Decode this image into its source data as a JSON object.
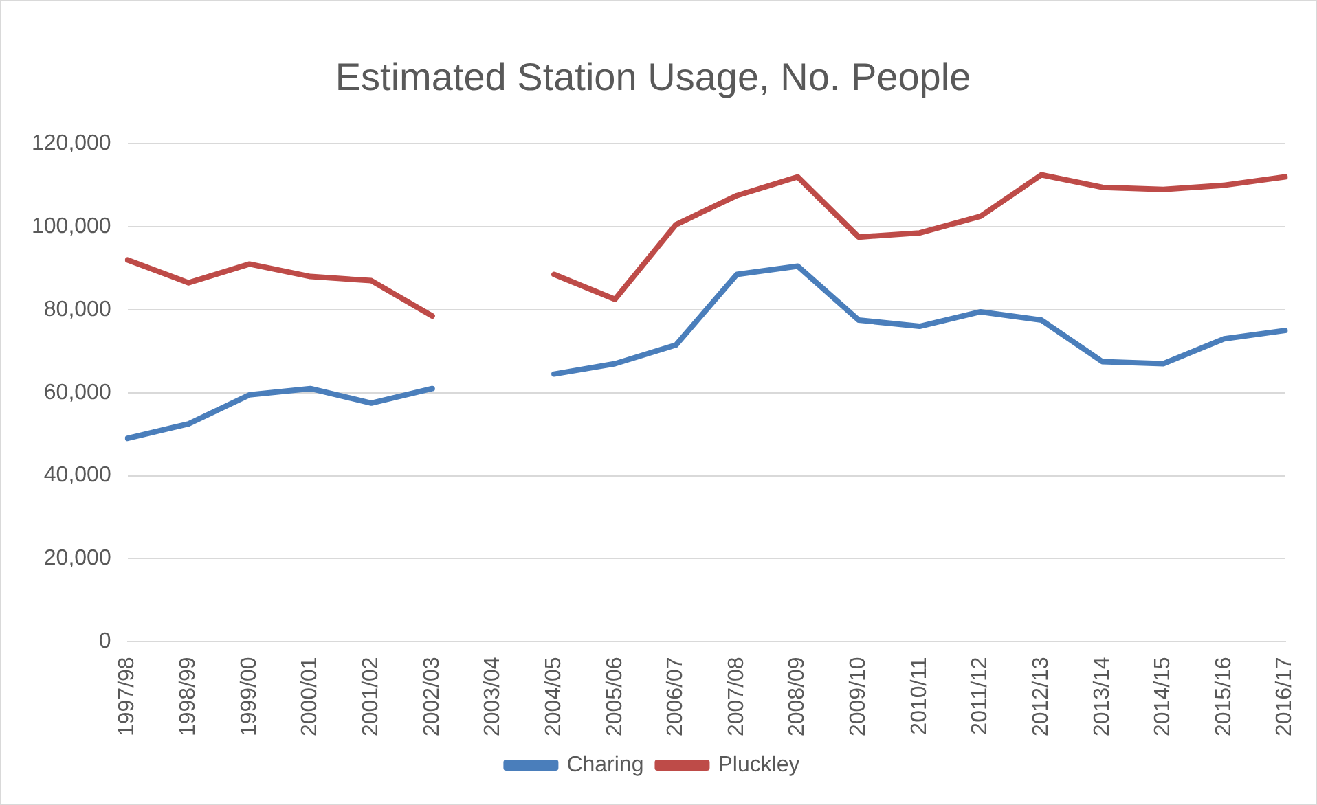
{
  "chart_data": {
    "type": "line",
    "title": "Estimated Station Usage, No. People",
    "categories": [
      "1997/98",
      "1998/99",
      "1999/00",
      "2000/01",
      "2001/02",
      "2002/03",
      "2003/04",
      "2004/05",
      "2005/06",
      "2006/07",
      "2007/08",
      "2008/09",
      "2009/10",
      "2010/11",
      "2011/12",
      "2012/13",
      "2013/14",
      "2014/15",
      "2015/16",
      "2016/17"
    ],
    "series": [
      {
        "name": "Charing",
        "color": "#4a7ebb",
        "values": [
          49000,
          52500,
          59500,
          61000,
          57500,
          61000,
          null,
          64500,
          67000,
          71500,
          88500,
          90500,
          77500,
          76000,
          79500,
          77500,
          67500,
          67000,
          73000,
          75000
        ]
      },
      {
        "name": "Pluckley",
        "color": "#be4b48",
        "values": [
          92000,
          86500,
          91000,
          88000,
          87000,
          78500,
          null,
          88500,
          82500,
          100500,
          107500,
          112000,
          97500,
          98500,
          102500,
          112500,
          109500,
          109000,
          110000,
          112000
        ]
      }
    ],
    "ylim": [
      0,
      120000
    ],
    "yticks": [
      {
        "value": 0,
        "label": "0"
      },
      {
        "value": 20000,
        "label": "20,000"
      },
      {
        "value": 40000,
        "label": "40,000"
      },
      {
        "value": 60000,
        "label": "60,000"
      },
      {
        "value": 80000,
        "label": "80,000"
      },
      {
        "value": 100000,
        "label": "100,000"
      },
      {
        "value": 120000,
        "label": "120,000"
      }
    ],
    "grid": "y",
    "legend": "bottom",
    "marker": "none",
    "line_style": "solid"
  }
}
